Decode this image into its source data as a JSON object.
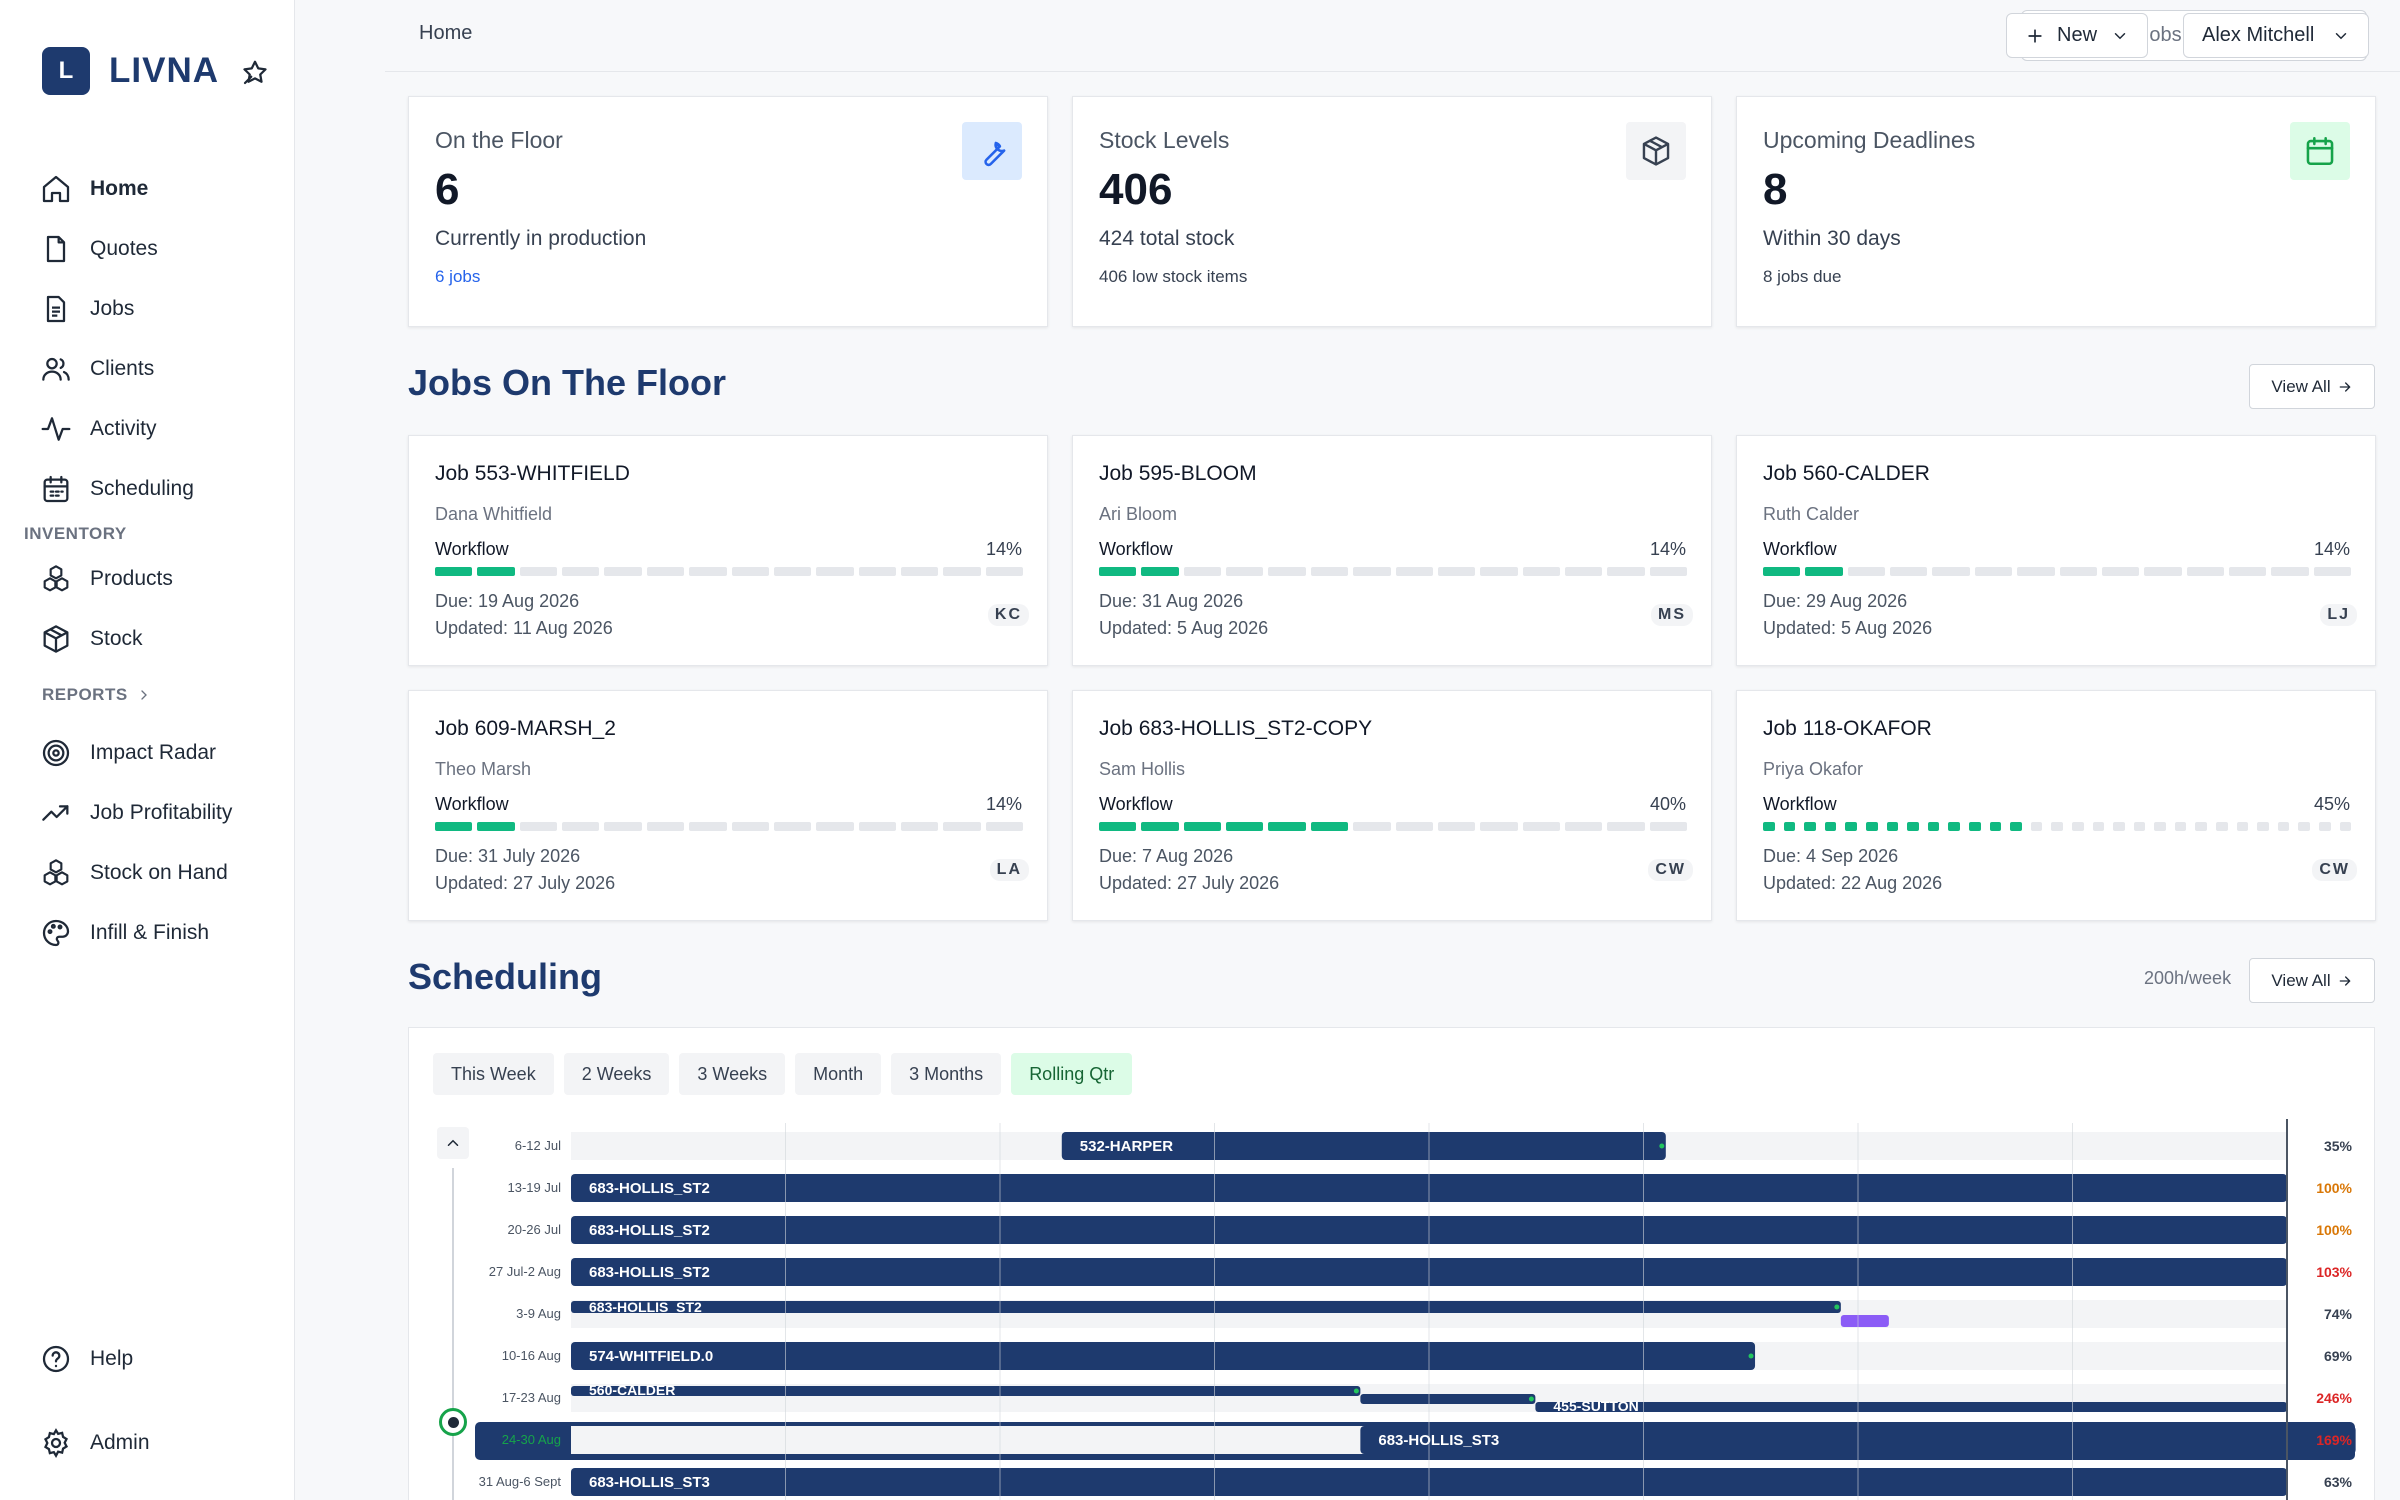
{
  "brand": {
    "logo_letter": "L",
    "name": "LIVNA"
  },
  "sidebar": {
    "items": [
      {
        "label": "Home",
        "icon": "home-icon",
        "active": true
      },
      {
        "label": "Quotes",
        "icon": "file-icon"
      },
      {
        "label": "Jobs",
        "icon": "clipboard-icon"
      },
      {
        "label": "Clients",
        "icon": "users-icon"
      },
      {
        "label": "Activity",
        "icon": "activity-icon"
      },
      {
        "label": "Scheduling",
        "icon": "calendar-icon"
      }
    ],
    "inventory_label": "INVENTORY",
    "inventory_items": [
      {
        "label": "Products",
        "icon": "products-icon"
      },
      {
        "label": "Stock",
        "icon": "box-icon"
      }
    ],
    "reports_label": "REPORTS",
    "reports_items": [
      {
        "label": "Impact Radar",
        "icon": "radar-icon"
      },
      {
        "label": "Job Profitability",
        "icon": "trending-up-icon"
      },
      {
        "label": "Stock on Hand",
        "icon": "products-icon"
      },
      {
        "label": "Infill & Finish",
        "icon": "palette-icon"
      }
    ],
    "footer_items": [
      {
        "label": "Help",
        "icon": "help-icon"
      },
      {
        "label": "Admin",
        "icon": "gear-icon"
      }
    ]
  },
  "header": {
    "breadcrumb": "Home",
    "search_placeholder": "Search jobs, products, clients",
    "new_label": "New",
    "user_name": "Alex Mitchell"
  },
  "stats": [
    {
      "title": "On the Floor",
      "value": "6",
      "subtitle": "Currently in production",
      "footer": "6 jobs",
      "icon": "wrench-icon"
    },
    {
      "title": "Stock Levels",
      "value": "406",
      "subtitle": "424 total stock",
      "footer": "406 low stock items",
      "icon": "box-icon"
    },
    {
      "title": "Upcoming Deadlines",
      "value": "8",
      "subtitle": "Within 30 days",
      "footer": "8 jobs due",
      "icon": "calendar-icon"
    }
  ],
  "jobs_section": {
    "title": "Jobs On The Floor",
    "view_all": "View All",
    "workflow_label": "Workflow",
    "jobs": [
      {
        "title": "Job 553-WHITFIELD",
        "client": "Dana Whitfield",
        "percent": "14%",
        "progress": 0.14,
        "segments": 14,
        "due": "Due: 19 Aug 2026",
        "updated": "Updated: 11 Aug 2026",
        "initials": "KC"
      },
      {
        "title": "Job 595-BLOOM",
        "client": "Ari Bloom",
        "percent": "14%",
        "progress": 0.14,
        "segments": 14,
        "due": "Due: 31 Aug 2026",
        "updated": "Updated: 5 Aug 2026",
        "initials": "MS"
      },
      {
        "title": "Job 560-CALDER",
        "client": "Ruth Calder",
        "percent": "14%",
        "progress": 0.14,
        "segments": 14,
        "due": "Due: 29 Aug 2026",
        "updated": "Updated: 5 Aug 2026",
        "initials": "LJ"
      },
      {
        "title": "Job 609-MARSH_2",
        "client": "Theo Marsh",
        "percent": "14%",
        "progress": 0.14,
        "segments": 14,
        "due": "Due: 31 July 2026",
        "updated": "Updated: 27 July 2026",
        "initials": "LA"
      },
      {
        "title": "Job 683-HOLLIS_ST2-COPY",
        "client": "Sam Hollis",
        "percent": "40%",
        "progress": 0.4,
        "segments": 14,
        "due": "Due: 7 Aug 2026",
        "updated": "Updated: 27 July 2026",
        "initials": "CW"
      },
      {
        "title": "Job 118-OKAFOR",
        "client": "Priya Okafor",
        "percent": "45%",
        "progress": 0.45,
        "segments": 29,
        "due": "Due: 4 Sep 2026",
        "updated": "Updated: 22 Aug 2026",
        "initials": "CW"
      }
    ]
  },
  "scheduling": {
    "title": "Scheduling",
    "hours_per_week": "200h/week",
    "view_all": "View All",
    "tabs": [
      {
        "label": "This Week"
      },
      {
        "label": "2 Weeks"
      },
      {
        "label": "3 Weeks"
      },
      {
        "label": "Month"
      },
      {
        "label": "3 Months"
      },
      {
        "label": "Rolling Qtr",
        "active": true
      }
    ]
  },
  "colors": {
    "brand": "#1e3a6e",
    "progress": "#10b981",
    "bar": "#1e3a6e",
    "purple": "#8b5cf6",
    "warn": "#d97706",
    "over": "#dc2626",
    "current": "#16a34a"
  },
  "chart_data": {
    "type": "gantt",
    "weeks": [
      {
        "label": "6-12 Jul",
        "utilization": "35%",
        "level": "normal",
        "bars": [
          {
            "label": "532-HARPER",
            "start": 0.286,
            "end": 0.638
          }
        ]
      },
      {
        "label": "13-19 Jul",
        "utilization": "100%",
        "level": "warn",
        "bars": [
          {
            "label": "683-HOLLIS_ST2",
            "start": 0,
            "end": 1
          }
        ]
      },
      {
        "label": "20-26 Jul",
        "utilization": "100%",
        "level": "warn",
        "bars": [
          {
            "label": "683-HOLLIS_ST2",
            "start": 0,
            "end": 1
          }
        ]
      },
      {
        "label": "27 Jul-2 Aug",
        "utilization": "103%",
        "level": "over",
        "bars": [
          {
            "label": "683-HOLLIS_ST2",
            "start": 0,
            "end": 1
          }
        ]
      },
      {
        "label": "3-9 Aug",
        "utilization": "74%",
        "level": "normal",
        "bars": [
          {
            "label": "683-HOLLIS_ST2",
            "start": 0,
            "end": 0.74,
            "thin": true
          },
          {
            "label": "",
            "start": 0.74,
            "end": 0.768,
            "thin": true,
            "lane": 1,
            "purple": true
          }
        ]
      },
      {
        "label": "10-16 Aug",
        "utilization": "69%",
        "level": "normal",
        "bars": [
          {
            "label": "574-WHITFIELD.0",
            "start": 0,
            "end": 0.69
          }
        ]
      },
      {
        "label": "17-23 Aug",
        "utilization": "246%",
        "level": "over",
        "bars": [
          {
            "label": "560-CALDER",
            "start": 0,
            "end": 0.46,
            "thin": true
          },
          {
            "label": "",
            "start": 0.46,
            "end": 0.562,
            "thin": true,
            "lane": 1
          },
          {
            "label": "455-SUTTON",
            "start": 0.562,
            "end": 1,
            "thin": true,
            "lane": 2
          }
        ]
      },
      {
        "label": "24-30 Aug",
        "utilization": "169%",
        "level": "over",
        "current": true,
        "bars": [
          {
            "label": "683-HOLLIS_ST3",
            "start": 0.46,
            "end": 1.04
          }
        ]
      },
      {
        "label": "31 Aug-6 Sept",
        "utilization": "63%",
        "level": "normal",
        "bars": [
          {
            "label": "683-HOLLIS_ST3",
            "start": 0,
            "end": 1
          }
        ]
      }
    ]
  }
}
